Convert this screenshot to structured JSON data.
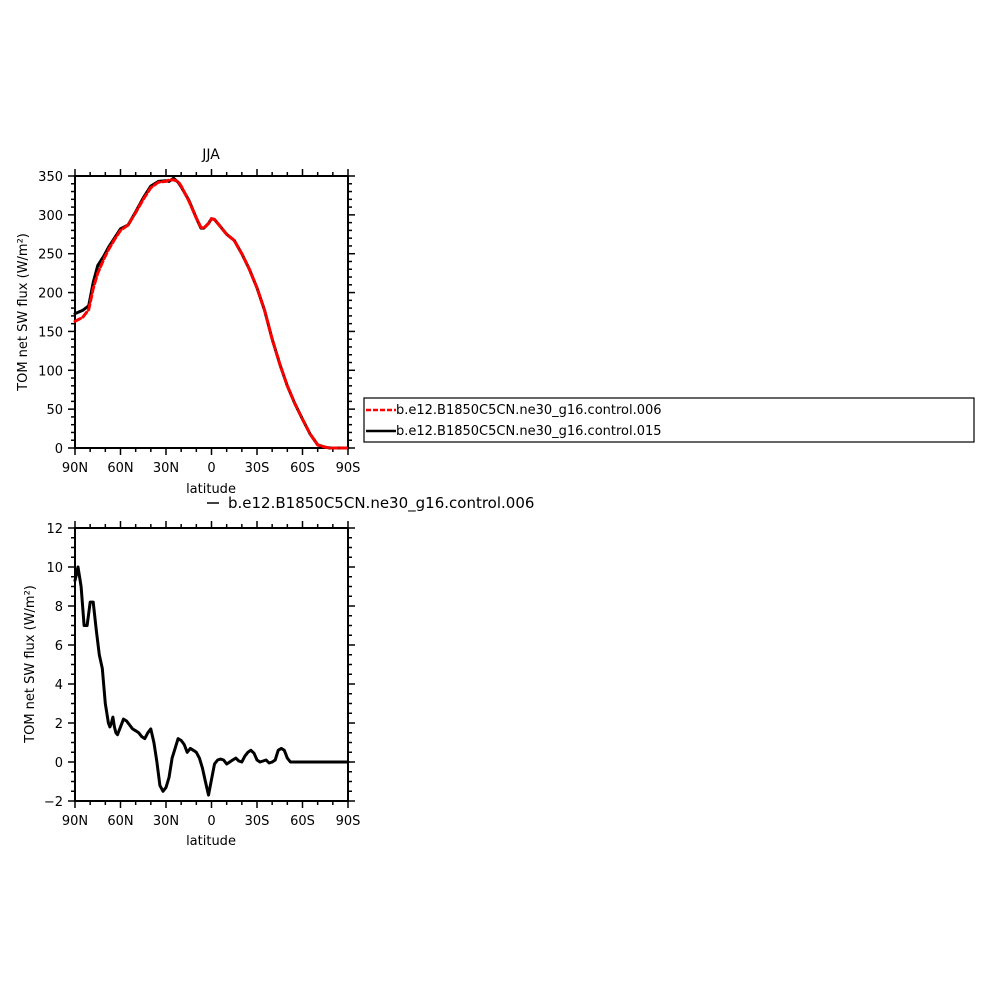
{
  "chart_data": [
    {
      "type": "line",
      "title": "JJA",
      "xlabel": "latitude",
      "ylabel": "TOM net SW flux (W/m²)",
      "xlim": [
        90,
        -90
      ],
      "ylim": [
        0,
        350
      ],
      "x_tick_values": [
        90,
        60,
        30,
        0,
        -30,
        -60,
        -90
      ],
      "x_tick_labels": [
        "90N",
        "60N",
        "30N",
        "0",
        "30S",
        "60S",
        "90S"
      ],
      "y_tick_values": [
        0,
        50,
        100,
        150,
        200,
        250,
        300,
        350
      ],
      "y_tick_labels": [
        "0",
        "50",
        "100",
        "150",
        "200",
        "250",
        "300",
        "350"
      ],
      "grid": false,
      "legend_position": "right",
      "series": [
        {
          "name": "b.e12.B1850C5CN.ne30_g16.control.006",
          "color": "#ff0000",
          "dash": "dashed",
          "x": [
            90,
            85,
            81,
            78,
            75,
            71,
            68,
            64,
            60,
            55,
            50,
            45,
            40,
            35,
            30,
            28,
            25,
            22,
            20,
            15,
            10,
            7,
            5,
            2,
            0,
            -2,
            -5,
            -10,
            -15,
            -20,
            -25,
            -30,
            -35,
            -40,
            -45,
            -50,
            -55,
            -60,
            -65,
            -70,
            -75,
            -78,
            -80,
            -85,
            -90
          ],
          "y": [
            163,
            168,
            178,
            205,
            225,
            243,
            255,
            268,
            280,
            287,
            303,
            320,
            335,
            342,
            343,
            345,
            345,
            343,
            337,
            318,
            296,
            284,
            283,
            289,
            295,
            294,
            287,
            275,
            267,
            250,
            230,
            206,
            177,
            140,
            108,
            80,
            57,
            37,
            18,
            4,
            1,
            0,
            0,
            0,
            0
          ]
        },
        {
          "name": "b.e12.B1850C5CN.ne30_g16.control.015",
          "color": "#000000",
          "dash": "solid",
          "x": [
            90,
            85,
            81,
            78,
            75,
            71,
            68,
            64,
            60,
            55,
            50,
            45,
            40,
            35,
            30,
            28,
            25,
            22,
            20,
            15,
            10,
            7,
            5,
            2,
            0,
            -2,
            -5,
            -10,
            -15,
            -20,
            -25,
            -30,
            -35,
            -40,
            -45,
            -50,
            -55,
            -60,
            -65,
            -70,
            -75,
            -78,
            -80,
            -85,
            -90
          ],
          "y": [
            173,
            177,
            183,
            213,
            235,
            247,
            258,
            270,
            282,
            287,
            304,
            322,
            337,
            343,
            344,
            343,
            347,
            342,
            336,
            319,
            296,
            283,
            283,
            289,
            295,
            294,
            287,
            275,
            267,
            250,
            230,
            206,
            177,
            140,
            108,
            80,
            57,
            37,
            18,
            4,
            1,
            0,
            0,
            0,
            0
          ]
        }
      ]
    },
    {
      "type": "line",
      "title": "b.e12.B1850C5CN.ne30_g16.control.006",
      "xlabel": "latitude",
      "ylabel": "TOM net SW flux (W/m²)",
      "xlim": [
        90,
        -90
      ],
      "ylim": [
        -2,
        12
      ],
      "x_tick_values": [
        90,
        60,
        30,
        0,
        -30,
        -60,
        -90
      ],
      "x_tick_labels": [
        "90N",
        "60N",
        "30N",
        "0",
        "30S",
        "60S",
        "90S"
      ],
      "y_tick_values": [
        -2,
        0,
        2,
        4,
        6,
        8,
        10,
        12
      ],
      "y_tick_labels": [
        "−2",
        "0",
        "2",
        "4",
        "6",
        "8",
        "10",
        "12"
      ],
      "grid": false,
      "series": [
        {
          "color": "#000000",
          "dash": "solid",
          "x": [
            90,
            88,
            86,
            84,
            82,
            80,
            78,
            76,
            74,
            72,
            70,
            68,
            67,
            66,
            65,
            64,
            63,
            62,
            60,
            58,
            56,
            54,
            52,
            50,
            48,
            46,
            44,
            42,
            40,
            38,
            36,
            34,
            32,
            30,
            28,
            26,
            24,
            22,
            20,
            18,
            16,
            14,
            12,
            10,
            8,
            6,
            4,
            2,
            0,
            -2,
            -4,
            -6,
            -8,
            -10,
            -12,
            -14,
            -16,
            -18,
            -20,
            -22,
            -24,
            -26,
            -28,
            -30,
            -32,
            -34,
            -36,
            -38,
            -40,
            -42,
            -44,
            -46,
            -48,
            -50,
            -52,
            -54,
            -56,
            -58,
            -60,
            -62,
            -64,
            -66,
            -68,
            -70,
            -75,
            -80,
            -85,
            -90
          ],
          "y": [
            9.3,
            10.0,
            9.0,
            7.0,
            7.0,
            8.2,
            8.2,
            6.8,
            5.5,
            4.8,
            3.0,
            2.0,
            1.8,
            2.0,
            2.3,
            1.8,
            1.5,
            1.4,
            1.8,
            2.2,
            2.1,
            1.9,
            1.7,
            1.6,
            1.5,
            1.3,
            1.2,
            1.5,
            1.7,
            1.0,
            0.0,
            -1.2,
            -1.5,
            -1.3,
            -0.8,
            0.2,
            0.7,
            1.2,
            1.1,
            0.9,
            0.5,
            0.7,
            0.6,
            0.5,
            0.2,
            -0.3,
            -1.0,
            -1.7,
            -0.9,
            -0.1,
            0.1,
            0.15,
            0.1,
            -0.1,
            0.0,
            0.1,
            0.2,
            0.05,
            0.0,
            0.3,
            0.5,
            0.6,
            0.45,
            0.1,
            0.0,
            0.05,
            0.1,
            -0.05,
            0.0,
            0.1,
            0.6,
            0.7,
            0.6,
            0.2,
            0.0,
            0.0,
            0.0,
            0.0,
            0.0,
            0.0,
            0.0,
            0.0,
            0.0,
            0.0,
            0.0,
            0.0,
            0.0,
            0.0
          ]
        }
      ]
    }
  ]
}
